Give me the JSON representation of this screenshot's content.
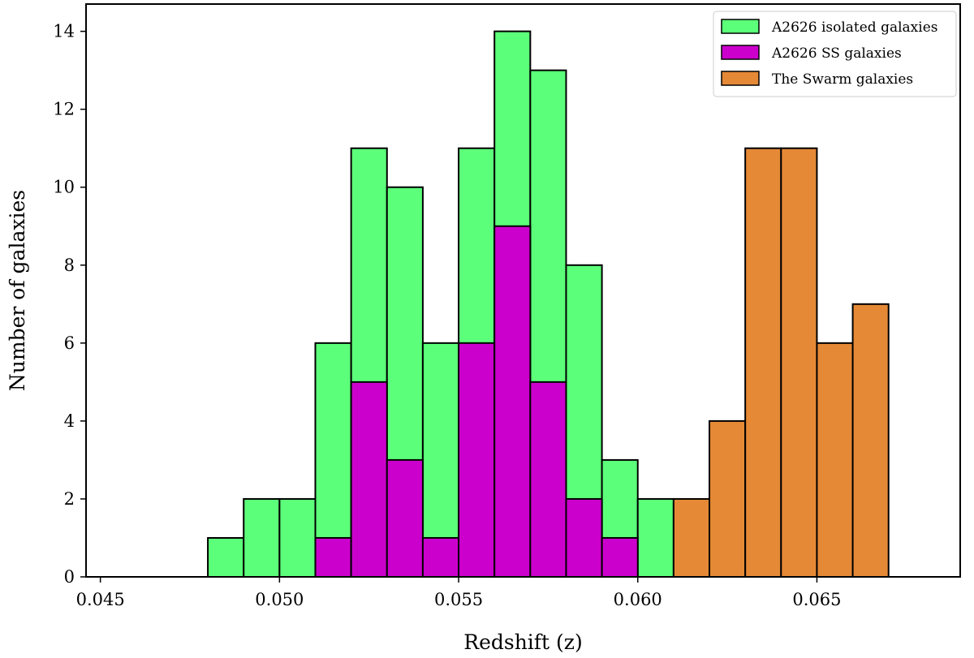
{
  "chart_data": {
    "type": "bar",
    "title": "",
    "xlabel": "Redshift (z)",
    "ylabel": "Number of galaxies",
    "xlim": [
      0.0446,
      0.069
    ],
    "ylim": [
      0,
      14.7
    ],
    "xticks": [
      0.045,
      0.05,
      0.055,
      0.06,
      0.065
    ],
    "xtick_labels": [
      "0.045",
      "0.050",
      "0.055",
      "0.060",
      "0.065"
    ],
    "yticks": [
      0,
      2,
      4,
      6,
      8,
      10,
      12,
      14
    ],
    "ytick_labels": [
      "0",
      "2",
      "4",
      "6",
      "8",
      "10",
      "12",
      "14"
    ],
    "grid": false,
    "legend_position": "top-right",
    "bin_width": 0.001,
    "series": [
      {
        "name": "A2626 isolated galaxies",
        "color": "#5cff7a",
        "bins": [
          {
            "x0": 0.046,
            "count": 0
          },
          {
            "x0": 0.047,
            "count": 0
          },
          {
            "x0": 0.048,
            "count": 1
          },
          {
            "x0": 0.049,
            "count": 2
          },
          {
            "x0": 0.05,
            "count": 2
          },
          {
            "x0": 0.051,
            "count": 6
          },
          {
            "x0": 0.052,
            "count": 11
          },
          {
            "x0": 0.053,
            "count": 10
          },
          {
            "x0": 0.054,
            "count": 6
          },
          {
            "x0": 0.055,
            "count": 11
          },
          {
            "x0": 0.056,
            "count": 14
          },
          {
            "x0": 0.057,
            "count": 13
          },
          {
            "x0": 0.058,
            "count": 8
          },
          {
            "x0": 0.059,
            "count": 3
          },
          {
            "x0": 0.06,
            "count": 2
          }
        ]
      },
      {
        "name": "A2626 SS galaxies",
        "color": "#cc00cc",
        "bins": [
          {
            "x0": 0.051,
            "count": 1
          },
          {
            "x0": 0.052,
            "count": 5
          },
          {
            "x0": 0.053,
            "count": 3
          },
          {
            "x0": 0.054,
            "count": 1
          },
          {
            "x0": 0.055,
            "count": 6
          },
          {
            "x0": 0.056,
            "count": 9
          },
          {
            "x0": 0.057,
            "count": 5
          },
          {
            "x0": 0.058,
            "count": 2
          },
          {
            "x0": 0.059,
            "count": 1
          }
        ]
      },
      {
        "name": "The Swarm galaxies",
        "color": "#e58936",
        "bins": [
          {
            "x0": 0.061,
            "count": 2
          },
          {
            "x0": 0.062,
            "count": 4
          },
          {
            "x0": 0.063,
            "count": 11
          },
          {
            "x0": 0.064,
            "count": 11
          },
          {
            "x0": 0.065,
            "count": 6
          },
          {
            "x0": 0.066,
            "count": 7
          },
          {
            "x0": 0.067,
            "count": 0
          }
        ]
      }
    ]
  }
}
